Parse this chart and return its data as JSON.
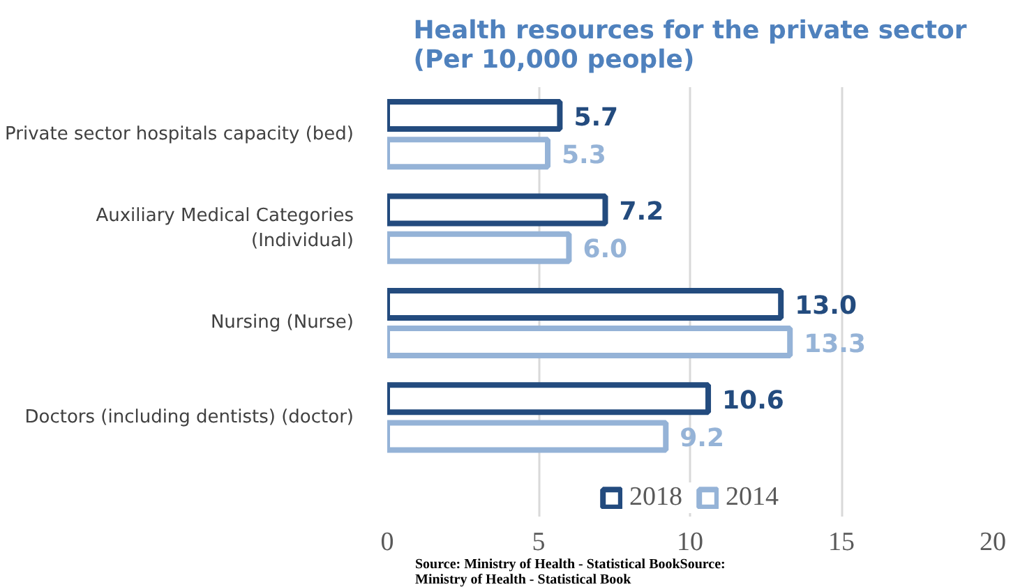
{
  "chart_data": {
    "type": "bar",
    "orientation": "horizontal",
    "title": "Health resources for the private sector\n(Per 10,000 people)",
    "categories": [
      "Private sector hospitals capacity (bed)",
      "Auxiliary Medical Categories\n(Individual)",
      "Nursing (Nurse)",
      "Doctors (including dentists) (doctor)"
    ],
    "series": [
      {
        "name": "2018",
        "color": "#234b7e",
        "values": [
          5.7,
          7.2,
          13.0,
          10.6
        ],
        "value_labels": [
          "5.7",
          "7.2",
          "13.0",
          "10.6"
        ]
      },
      {
        "name": "2014",
        "color": "#95b3d7",
        "values": [
          5.3,
          6.0,
          13.3,
          9.2
        ],
        "value_labels": [
          "5.3",
          "6.0",
          "13.3",
          "9.2"
        ]
      }
    ],
    "xlim": [
      0,
      20
    ],
    "xticks": [
      0,
      5,
      10,
      15,
      20
    ],
    "grid": "x",
    "legend": "bottom",
    "annotations": [
      "Source: Ministry of Health - Statistical BookSource:\nMinistry of Health - Statistical Book"
    ]
  }
}
